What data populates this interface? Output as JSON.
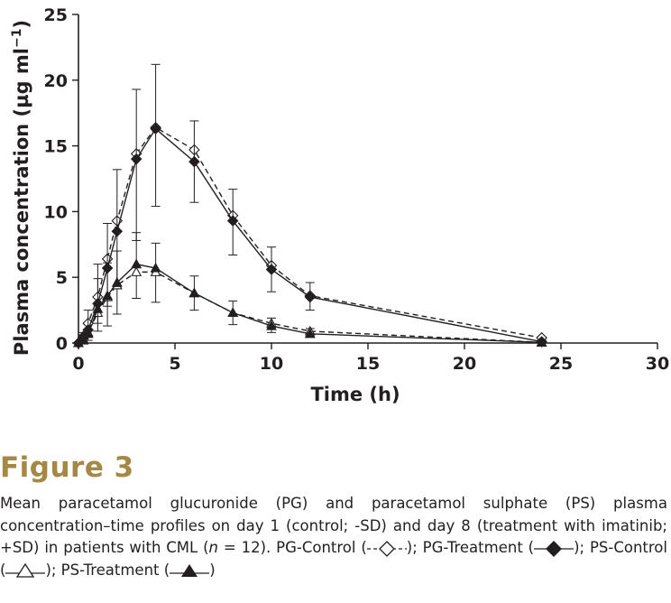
{
  "chart_data": {
    "type": "line",
    "xlabel": "Time (h)",
    "ylabel": "Plasma concentration (µg ml⁻¹)",
    "ylabel_parts": {
      "main": "Plasma concentration (µg ml",
      "sup": "−1",
      "close": ")"
    },
    "xlim": [
      0,
      30
    ],
    "ylim": [
      0,
      25
    ],
    "xticks": [
      0,
      5,
      10,
      15,
      20,
      25,
      30
    ],
    "yticks": [
      0,
      5,
      10,
      15,
      20,
      25
    ],
    "grid": false,
    "legend": "in caption",
    "series": [
      {
        "name": "PG-Control",
        "style": "dashed",
        "marker": "diamond",
        "fill": "open",
        "x": [
          0,
          0.25,
          0.5,
          1,
          1.5,
          2,
          3,
          4,
          6,
          8,
          10,
          12,
          24
        ],
        "y": [
          0,
          0.5,
          1.5,
          3.5,
          6.4,
          9.3,
          14.4,
          16.4,
          14.7,
          9.7,
          5.9,
          3.6,
          0.4
        ],
        "error_dir": "down",
        "sd": [
          0,
          0.3,
          1.0,
          2.0,
          3.6,
          5.0,
          6.6,
          6.0,
          4.0,
          3.0,
          2.0,
          1.1,
          0.1
        ]
      },
      {
        "name": "PG-Treatment",
        "style": "solid",
        "marker": "diamond",
        "fill": "filled",
        "x": [
          0,
          0.25,
          0.5,
          1,
          1.5,
          2,
          3,
          4,
          6,
          8,
          10,
          12,
          24
        ],
        "y": [
          0,
          0.4,
          1.0,
          3.0,
          5.7,
          8.5,
          14.0,
          16.3,
          13.8,
          9.3,
          5.6,
          3.5,
          0.1
        ],
        "error_dir": "up",
        "sd": [
          0,
          0.4,
          1.5,
          3.0,
          3.4,
          4.7,
          5.3,
          4.9,
          3.1,
          2.4,
          1.7,
          1.1,
          0.1
        ]
      },
      {
        "name": "PS-Control",
        "style": "dashed",
        "marker": "triangle",
        "fill": "open",
        "x": [
          0,
          0.25,
          0.5,
          1,
          1.5,
          2,
          3,
          4,
          6,
          8,
          10,
          12,
          24
        ],
        "y": [
          0,
          0.3,
          0.8,
          2.3,
          3.5,
          4.4,
          5.4,
          5.4,
          3.8,
          2.3,
          1.5,
          0.9,
          0.05
        ],
        "error_dir": "down",
        "sd": [
          0,
          0.3,
          0.6,
          1.4,
          2.2,
          2.2,
          2.0,
          2.3,
          1.3,
          0.9,
          0.7,
          0.4,
          0.05
        ]
      },
      {
        "name": "PS-Treatment",
        "style": "solid",
        "marker": "triangle",
        "fill": "filled",
        "x": [
          0,
          0.25,
          0.5,
          1,
          1.5,
          2,
          3,
          4,
          6,
          8,
          10,
          12,
          24
        ],
        "y": [
          0,
          0.2,
          0.7,
          2.6,
          3.6,
          4.6,
          6.0,
          5.7,
          3.8,
          2.3,
          1.3,
          0.7,
          0.05
        ],
        "error_dir": "up",
        "sd": [
          0,
          0.3,
          0.7,
          2.3,
          2.5,
          2.4,
          2.4,
          1.9,
          1.3,
          0.9,
          0.6,
          0.4,
          0.05
        ]
      }
    ]
  },
  "figure": {
    "title": "Figure 3",
    "caption": {
      "line1": "Mean paracetamol glucuronide (PG) and paracetamol sulphate (PS) plasma concentration–time profiles on day 1 (control; -SD) and day 8 (treatment with imatinib; +SD) in patients with CML (",
      "n_italic": "n",
      "n_value": " = 12). PG-Control (",
      "pg_treat_label": "); PG-Treatment (",
      "ps_control_label": "); PS-Control (",
      "ps_treat_label": "); PS-Treatment (",
      "close": ")"
    }
  }
}
